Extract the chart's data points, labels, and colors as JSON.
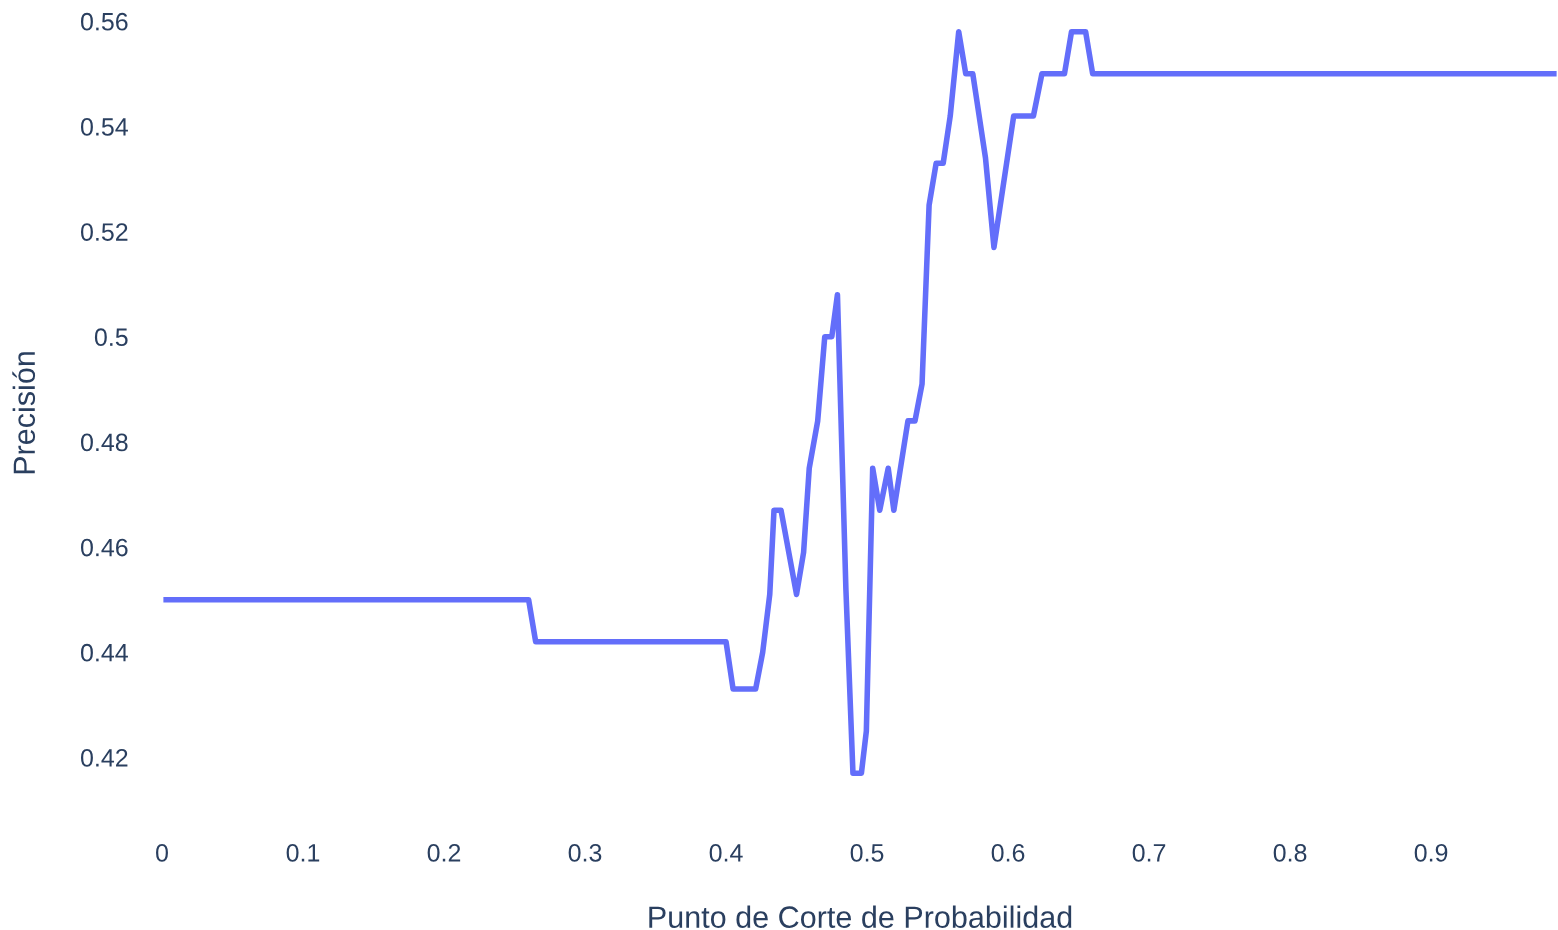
{
  "chart_data": {
    "type": "line",
    "xlabel": "Punto de Corte de Probabilidad",
    "ylabel": "Precisión",
    "xlim": [
      0,
      0.99
    ],
    "ylim": [
      0.41,
      0.561
    ],
    "xticks": [
      0,
      0.1,
      0.2,
      0.3,
      0.4,
      0.5,
      0.6,
      0.7,
      0.8,
      0.9
    ],
    "yticks": [
      0.42,
      0.44,
      0.46,
      0.48,
      0.5,
      0.52,
      0.54,
      0.56
    ],
    "grid": false,
    "legend": false,
    "series": [
      {
        "color": "#636efa",
        "x": [
          0,
          0.26,
          0.265,
          0.4,
          0.405,
          0.421,
          0.426,
          0.431,
          0.434,
          0.439,
          0.45,
          0.455,
          0.459,
          0.465,
          0.47,
          0.475,
          0.479,
          0.485,
          0.49,
          0.496,
          0.4995,
          0.504,
          0.509,
          0.515,
          0.519,
          0.529,
          0.534,
          0.539,
          0.544,
          0.549,
          0.554,
          0.559,
          0.565,
          0.57,
          0.575,
          0.584,
          0.59,
          0.604,
          0.618,
          0.624,
          0.64,
          0.645,
          0.655,
          0.66,
          0.99
        ],
        "values": [
          0.45,
          0.45,
          0.442,
          0.442,
          0.433,
          0.433,
          0.44,
          0.451,
          0.467,
          0.467,
          0.451,
          0.459,
          0.475,
          0.484,
          0.5,
          0.5,
          0.508,
          0.452,
          0.417,
          0.417,
          0.425,
          0.475,
          0.467,
          0.475,
          0.467,
          0.484,
          0.484,
          0.491,
          0.525,
          0.533,
          0.533,
          0.542,
          0.558,
          0.55,
          0.55,
          0.534,
          0.517,
          0.542,
          0.542,
          0.55,
          0.55,
          0.558,
          0.558,
          0.55,
          0.55
        ]
      }
    ]
  }
}
